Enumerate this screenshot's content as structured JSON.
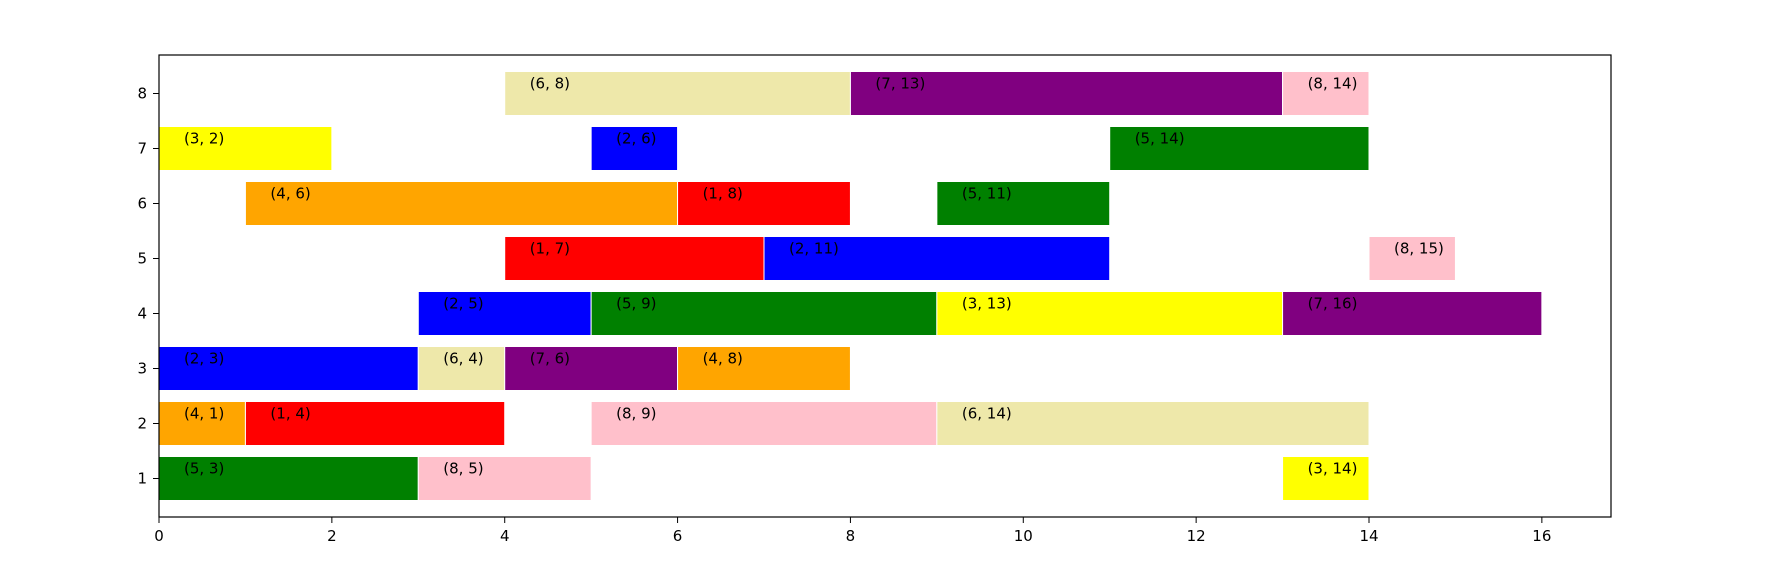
{
  "chart_data": {
    "type": "bar",
    "orientation": "horizontal",
    "title": "",
    "xlabel": "",
    "ylabel": "",
    "xlim": [
      0,
      16.8
    ],
    "ylim": [
      0.3,
      8.7
    ],
    "xticks": [
      "0",
      "2",
      "4",
      "6",
      "8",
      "10",
      "12",
      "14",
      "16"
    ],
    "yticks": [
      "1",
      "2",
      "3",
      "4",
      "5",
      "6",
      "7",
      "8"
    ],
    "grid": false,
    "colors": {
      "green": "#008000",
      "pink": "#ffc0cb",
      "yellow": "#ffff00",
      "orange": "#ffa500",
      "red": "#ff0000",
      "blue": "#0000ff",
      "khaki": "#eee8aa",
      "purple": "#800080"
    },
    "bars": [
      {
        "y": 1,
        "start": 0,
        "end": 3,
        "color": "green",
        "label": "(5, 3)"
      },
      {
        "y": 1,
        "start": 3,
        "end": 5,
        "color": "pink",
        "label": "(8, 5)"
      },
      {
        "y": 1,
        "start": 13,
        "end": 14,
        "color": "yellow",
        "label": "(3, 14)"
      },
      {
        "y": 2,
        "start": 0,
        "end": 1,
        "color": "orange",
        "label": "(4, 1)"
      },
      {
        "y": 2,
        "start": 1,
        "end": 4,
        "color": "red",
        "label": "(1, 4)"
      },
      {
        "y": 2,
        "start": 5,
        "end": 9,
        "color": "pink",
        "label": "(8, 9)"
      },
      {
        "y": 2,
        "start": 9,
        "end": 14,
        "color": "khaki",
        "label": "(6, 14)"
      },
      {
        "y": 3,
        "start": 0,
        "end": 3,
        "color": "blue",
        "label": "(2, 3)"
      },
      {
        "y": 3,
        "start": 3,
        "end": 4,
        "color": "khaki",
        "label": "(6, 4)"
      },
      {
        "y": 3,
        "start": 4,
        "end": 6,
        "color": "purple",
        "label": "(7, 6)"
      },
      {
        "y": 3,
        "start": 6,
        "end": 8,
        "color": "orange",
        "label": "(4, 8)"
      },
      {
        "y": 4,
        "start": 3,
        "end": 5,
        "color": "blue",
        "label": "(2, 5)"
      },
      {
        "y": 4,
        "start": 5,
        "end": 9,
        "color": "green",
        "label": "(5, 9)"
      },
      {
        "y": 4,
        "start": 9,
        "end": 13,
        "color": "yellow",
        "label": "(3, 13)"
      },
      {
        "y": 4,
        "start": 13,
        "end": 16,
        "color": "purple",
        "label": "(7, 16)"
      },
      {
        "y": 5,
        "start": 4,
        "end": 7,
        "color": "red",
        "label": "(1, 7)"
      },
      {
        "y": 5,
        "start": 7,
        "end": 11,
        "color": "blue",
        "label": "(2, 11)"
      },
      {
        "y": 5,
        "start": 14,
        "end": 15,
        "color": "pink",
        "label": "(8, 15)"
      },
      {
        "y": 6,
        "start": 1,
        "end": 6,
        "color": "orange",
        "label": "(4, 6)"
      },
      {
        "y": 6,
        "start": 6,
        "end": 8,
        "color": "red",
        "label": "(1, 8)"
      },
      {
        "y": 6,
        "start": 9,
        "end": 11,
        "color": "green",
        "label": "(5, 11)"
      },
      {
        "y": 7,
        "start": 0,
        "end": 2,
        "color": "yellow",
        "label": "(3, 2)"
      },
      {
        "y": 7,
        "start": 5,
        "end": 6,
        "color": "blue",
        "label": "(2, 6)"
      },
      {
        "y": 7,
        "start": 11,
        "end": 14,
        "color": "green",
        "label": "(5, 14)"
      },
      {
        "y": 8,
        "start": 4,
        "end": 8,
        "color": "khaki",
        "label": "(6, 8)"
      },
      {
        "y": 8,
        "start": 8,
        "end": 13,
        "color": "purple",
        "label": "(7, 13)"
      },
      {
        "y": 8,
        "start": 13,
        "end": 14,
        "color": "pink",
        "label": "(8, 14)"
      }
    ]
  }
}
